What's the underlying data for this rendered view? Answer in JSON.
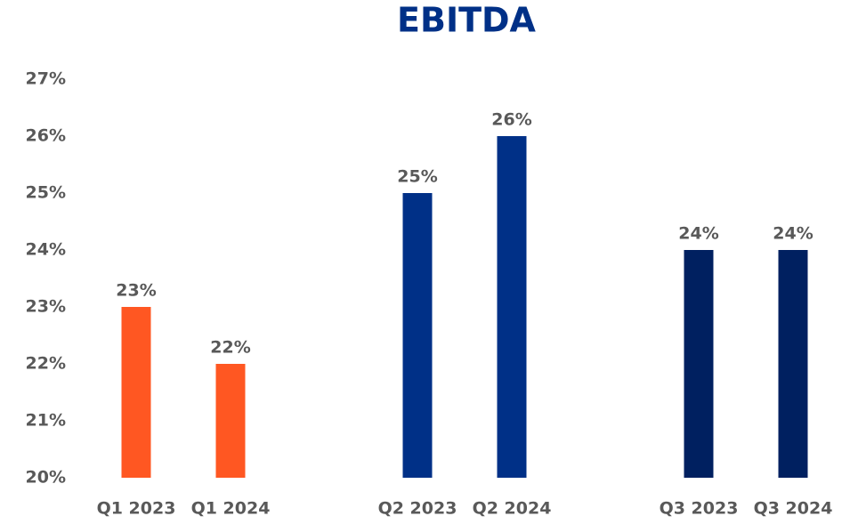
{
  "chart_data": {
    "type": "bar",
    "title": "EBITDA",
    "categories": [
      "Q1 2023",
      "Q1 2024",
      "Q2 2023",
      "Q2 2024",
      "Q3 2023",
      "Q3 2024"
    ],
    "values": [
      23,
      22,
      25,
      26,
      24,
      24
    ],
    "value_labels": [
      "23%",
      "22%",
      "25%",
      "26%",
      "24%",
      "24%"
    ],
    "colors": [
      "#ff5722",
      "#ff5722",
      "#003087",
      "#003087",
      "#002060",
      "#002060"
    ],
    "ylim": [
      20,
      27
    ],
    "yticks": [
      {
        "value": 20,
        "label": "20%"
      },
      {
        "value": 21,
        "label": "21%"
      },
      {
        "value": 22,
        "label": "22%"
      },
      {
        "value": 23,
        "label": "23%"
      },
      {
        "value": 24,
        "label": "24%"
      },
      {
        "value": 25,
        "label": "25%"
      },
      {
        "value": 26,
        "label": "26%"
      },
      {
        "value": 27,
        "label": "27%"
      }
    ],
    "grid": false
  }
}
